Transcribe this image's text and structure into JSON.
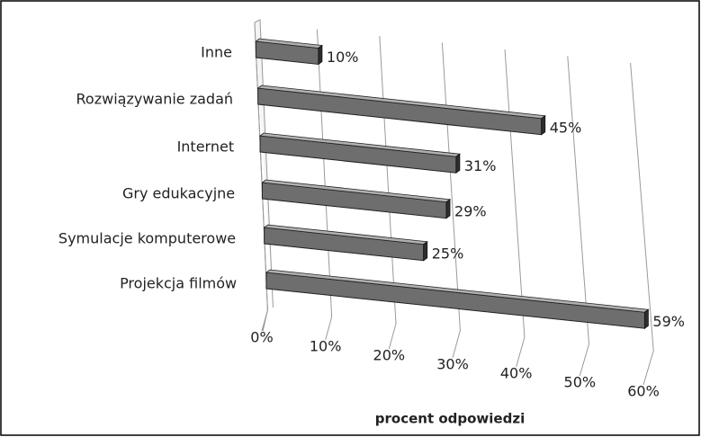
{
  "chart_data": {
    "type": "bar",
    "orientation": "horizontal",
    "3d": true,
    "categories": [
      "Inne",
      "Rozwiązywanie zadań",
      "Internet",
      "Gry edukacyjne",
      "Symulacje komputerowe",
      "Projekcja filmów"
    ],
    "values": [
      10,
      45,
      31,
      29,
      25,
      59
    ],
    "value_labels": [
      "10%",
      "45%",
      "31%",
      "29%",
      "25%",
      "59%"
    ],
    "color": "#6e6e6e",
    "xlim": [
      0,
      60
    ],
    "xticks": [
      {
        "value": 0,
        "label": "0%"
      },
      {
        "value": 10,
        "label": "10%"
      },
      {
        "value": 20,
        "label": "20%"
      },
      {
        "value": 30,
        "label": "30%"
      },
      {
        "value": 40,
        "label": "40%"
      },
      {
        "value": 50,
        "label": "50%"
      },
      {
        "value": 60,
        "label": "60%"
      }
    ],
    "xlabel": "procent odpowiedzi",
    "grid": true
  }
}
